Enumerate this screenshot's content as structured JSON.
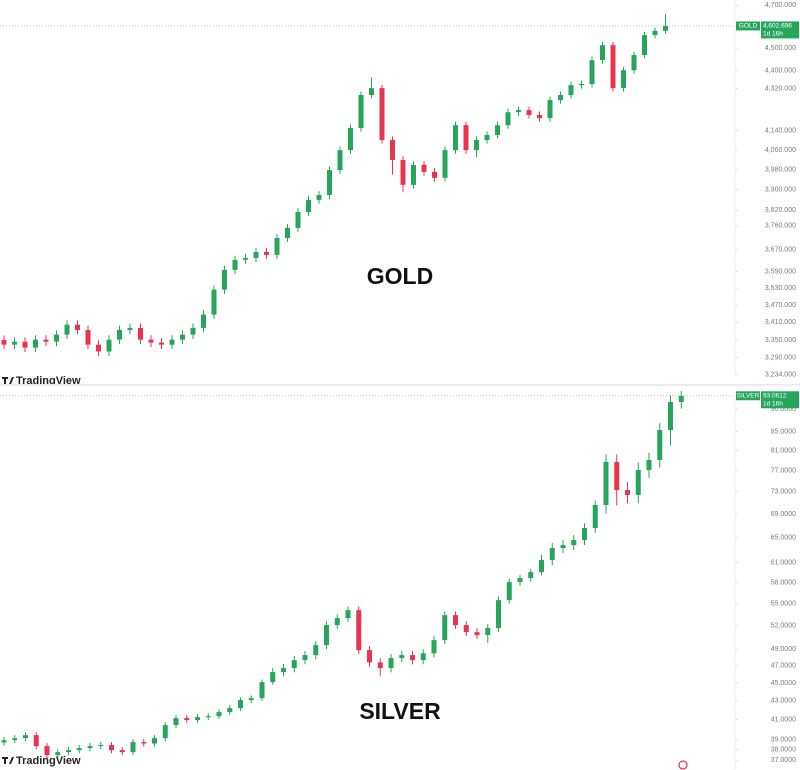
{
  "chart_data": [
    {
      "type": "candlestick",
      "title": "GOLD",
      "log_scale": true,
      "up_color": "#26a65b",
      "down_color": "#e8344e",
      "ylim": [
        3230,
        4725
      ],
      "yticks": [
        {
          "value": 4700,
          "label": "4,700.000"
        },
        {
          "value": 4500,
          "label": "4,500.000"
        },
        {
          "value": 4400,
          "label": "4,400.000"
        },
        {
          "value": 4320,
          "label": "4,320.000"
        },
        {
          "value": 4140,
          "label": "4,140.000"
        },
        {
          "value": 4060,
          "label": "4,060.000"
        },
        {
          "value": 3980,
          "label": "3,980.000"
        },
        {
          "value": 3900,
          "label": "3,900.000"
        },
        {
          "value": 3820,
          "label": "3,820.000"
        },
        {
          "value": 3760,
          "label": "3,760.000"
        },
        {
          "value": 3670,
          "label": "3,670.000"
        },
        {
          "value": 3590,
          "label": "3,590.000"
        },
        {
          "value": 3530,
          "label": "3,530.000"
        },
        {
          "value": 3470,
          "label": "3,470.000"
        },
        {
          "value": 3410,
          "label": "3,410.000"
        },
        {
          "value": 3350,
          "label": "3,350.000"
        },
        {
          "value": 3290,
          "label": "3,290.000"
        },
        {
          "value": 3234,
          "label": "3,234.000"
        }
      ],
      "open": [
        3350,
        3334,
        3344,
        3324,
        3351,
        3344,
        3368,
        3402,
        3384,
        3334,
        3311,
        3351,
        3384,
        3391,
        3351,
        3341,
        3334,
        3351,
        3368,
        3391,
        3437,
        3525,
        3596,
        3633,
        3640,
        3662,
        3651,
        3714,
        3752,
        3813,
        3860,
        3879,
        3978,
        4059,
        4151,
        4292,
        4322,
        4101,
        4019,
        3919,
        3999,
        3971,
        3947,
        4059,
        4163,
        4059,
        4101,
        4122,
        4163,
        4218,
        4227,
        4206,
        4193,
        4270,
        4292,
        4335,
        4340,
        4446,
        4514,
        4322,
        4401,
        4469,
        4560,
        4580
      ],
      "high": [
        3365,
        3359,
        3359,
        3366,
        3366,
        3383,
        3417,
        3417,
        3399,
        3349,
        3366,
        3399,
        3406,
        3406,
        3366,
        3356,
        3366,
        3383,
        3406,
        3452,
        3540,
        3611,
        3648,
        3655,
        3677,
        3677,
        3729,
        3767,
        3828,
        3875,
        3894,
        3993,
        4074,
        4166,
        4307,
        4370,
        4337,
        4116,
        4034,
        4014,
        4014,
        3986,
        4074,
        4178,
        4178,
        4116,
        4137,
        4178,
        4233,
        4242,
        4242,
        4221,
        4285,
        4307,
        4350,
        4355,
        4461,
        4529,
        4529,
        4416,
        4484,
        4575,
        4595,
        4660
      ],
      "low": [
        3319,
        3319,
        3309,
        3309,
        3329,
        3329,
        3353,
        3369,
        3319,
        3296,
        3296,
        3336,
        3369,
        3336,
        3326,
        3319,
        3319,
        3336,
        3353,
        3376,
        3422,
        3510,
        3581,
        3618,
        3625,
        3636,
        3636,
        3699,
        3737,
        3798,
        3845,
        3864,
        3963,
        4044,
        4136,
        4277,
        4086,
        3960,
        3890,
        3904,
        3956,
        3932,
        3932,
        4044,
        4044,
        4030,
        4086,
        4107,
        4148,
        4203,
        4191,
        4178,
        4178,
        4255,
        4277,
        4320,
        4325,
        4431,
        4307,
        4307,
        4386,
        4454,
        4545,
        4565
      ],
      "close": [
        3334,
        3344,
        3324,
        3351,
        3344,
        3368,
        3402,
        3384,
        3334,
        3311,
        3351,
        3384,
        3391,
        3351,
        3341,
        3334,
        3351,
        3368,
        3391,
        3437,
        3525,
        3596,
        3633,
        3640,
        3662,
        3651,
        3714,
        3752,
        3813,
        3860,
        3879,
        3978,
        4059,
        4151,
        4292,
        4322,
        4101,
        4019,
        3919,
        3999,
        3971,
        3947,
        4059,
        4163,
        4059,
        4101,
        4122,
        4163,
        4218,
        4227,
        4206,
        4193,
        4270,
        4292,
        4335,
        4340,
        4446,
        4514,
        4322,
        4401,
        4469,
        4560,
        4580,
        4602.696
      ],
      "price_tag": {
        "label": "4,602.696",
        "countdown": "1d 16h"
      },
      "watermark": "TradingView"
    },
    {
      "type": "candlestick",
      "title": "SILVER",
      "log_scale": true,
      "up_color": "#26a65b",
      "down_color": "#e8344e",
      "ylim": [
        36.1,
        94.43
      ],
      "yticks": [
        {
          "value": 90,
          "label": "90.0000"
        },
        {
          "value": 85,
          "label": "85.0000"
        },
        {
          "value": 81,
          "label": "81.0000"
        },
        {
          "value": 77,
          "label": "77.0000"
        },
        {
          "value": 73,
          "label": "73.0000"
        },
        {
          "value": 69,
          "label": "69.0000"
        },
        {
          "value": 65,
          "label": "65.0000"
        },
        {
          "value": 61,
          "label": "61.0000"
        },
        {
          "value": 58,
          "label": "58.0000"
        },
        {
          "value": 55,
          "label": "55.0000"
        },
        {
          "value": 52,
          "label": "52.0000"
        },
        {
          "value": 49,
          "label": "49.0000"
        },
        {
          "value": 47,
          "label": "47.0000"
        },
        {
          "value": 45,
          "label": "45.0000"
        },
        {
          "value": 43,
          "label": "43.0000"
        },
        {
          "value": 41,
          "label": "41.0000"
        },
        {
          "value": 39,
          "label": "39.0000"
        },
        {
          "value": 38,
          "label": "38.0000"
        },
        {
          "value": 37,
          "label": "37.0000"
        }
      ],
      "open": [
        38.7,
        38.93,
        39.13,
        39.43,
        38.35,
        37.49,
        37.77,
        37.96,
        38.16,
        38.35,
        38.45,
        37.96,
        37.77,
        38.74,
        38.6,
        39.13,
        40.44,
        41.17,
        40.96,
        41.27,
        41.37,
        41.8,
        42.22,
        43.08,
        43.3,
        45.09,
        46.25,
        46.72,
        47.67,
        48.28,
        49.52,
        52.09,
        53.02,
        54.1,
        48.9,
        47.4,
        46.72,
        47.92,
        48.28,
        47.67,
        48.5,
        50.15,
        53.42,
        52.09,
        51.17,
        50.79,
        51.7,
        55.49,
        58.08,
        58.67,
        59.57,
        61.41,
        63.31,
        63.78,
        64.6,
        66.59,
        70.59,
        78.7,
        73.31,
        72.4,
        77.12,
        79.1,
        85.34,
        91.61
      ],
      "high": [
        39.23,
        39.43,
        39.73,
        39.73,
        38.65,
        38.07,
        38.26,
        38.46,
        38.65,
        38.75,
        38.75,
        38.26,
        39.04,
        39.04,
        39.43,
        40.74,
        41.47,
        41.47,
        41.57,
        41.67,
        42.1,
        42.52,
        43.38,
        43.6,
        45.39,
        46.75,
        47.22,
        48.17,
        48.78,
        50.02,
        52.59,
        53.52,
        54.6,
        54.6,
        49.4,
        47.9,
        48.42,
        48.78,
        48.78,
        49.0,
        50.65,
        53.92,
        53.92,
        52.59,
        51.67,
        52.2,
        55.99,
        58.58,
        59.17,
        60.07,
        62.21,
        64.11,
        64.58,
        65.4,
        67.39,
        71.39,
        80.2,
        80.2,
        74.8,
        78.62,
        80.6,
        86.84,
        93.11,
        94.2
      ],
      "low": [
        38.4,
        38.63,
        38.83,
        38.05,
        37.19,
        37.19,
        37.47,
        37.66,
        37.86,
        38.05,
        37.66,
        37.47,
        37.47,
        38.3,
        38.3,
        38.83,
        40.14,
        40.66,
        40.66,
        40.97,
        41.07,
        41.5,
        41.92,
        42.78,
        43.0,
        44.79,
        45.75,
        46.22,
        47.17,
        47.78,
        49.02,
        51.59,
        52.52,
        48.4,
        46.9,
        45.8,
        46.22,
        47.42,
        47.17,
        47.17,
        48.0,
        49.65,
        51.59,
        50.67,
        50.29,
        49.8,
        51.2,
        54.99,
        57.58,
        58.17,
        59.07,
        60.61,
        62.51,
        62.98,
        63.8,
        65.79,
        69.09,
        70.5,
        70.9,
        70.9,
        75.62,
        77.6,
        82.0,
        90.1
      ],
      "close": [
        38.93,
        39.13,
        39.43,
        38.35,
        37.49,
        37.77,
        37.96,
        38.16,
        38.35,
        38.45,
        37.96,
        37.77,
        38.74,
        38.6,
        39.13,
        40.44,
        41.17,
        40.96,
        41.27,
        41.37,
        41.8,
        42.22,
        43.08,
        43.3,
        45.09,
        46.25,
        46.72,
        47.67,
        48.28,
        49.52,
        52.09,
        53.02,
        54.1,
        48.9,
        47.4,
        46.72,
        47.92,
        48.28,
        47.67,
        48.5,
        50.15,
        53.42,
        52.09,
        51.17,
        50.79,
        51.7,
        55.49,
        58.08,
        58.67,
        59.57,
        61.41,
        63.31,
        63.78,
        64.6,
        66.59,
        70.59,
        78.7,
        73.31,
        72.4,
        77.12,
        79.1,
        85.34,
        91.61,
        93.0612
      ],
      "price_tag": {
        "label": "93.0612",
        "countdown": "1d 16h"
      },
      "watermark": "TradingView"
    }
  ]
}
